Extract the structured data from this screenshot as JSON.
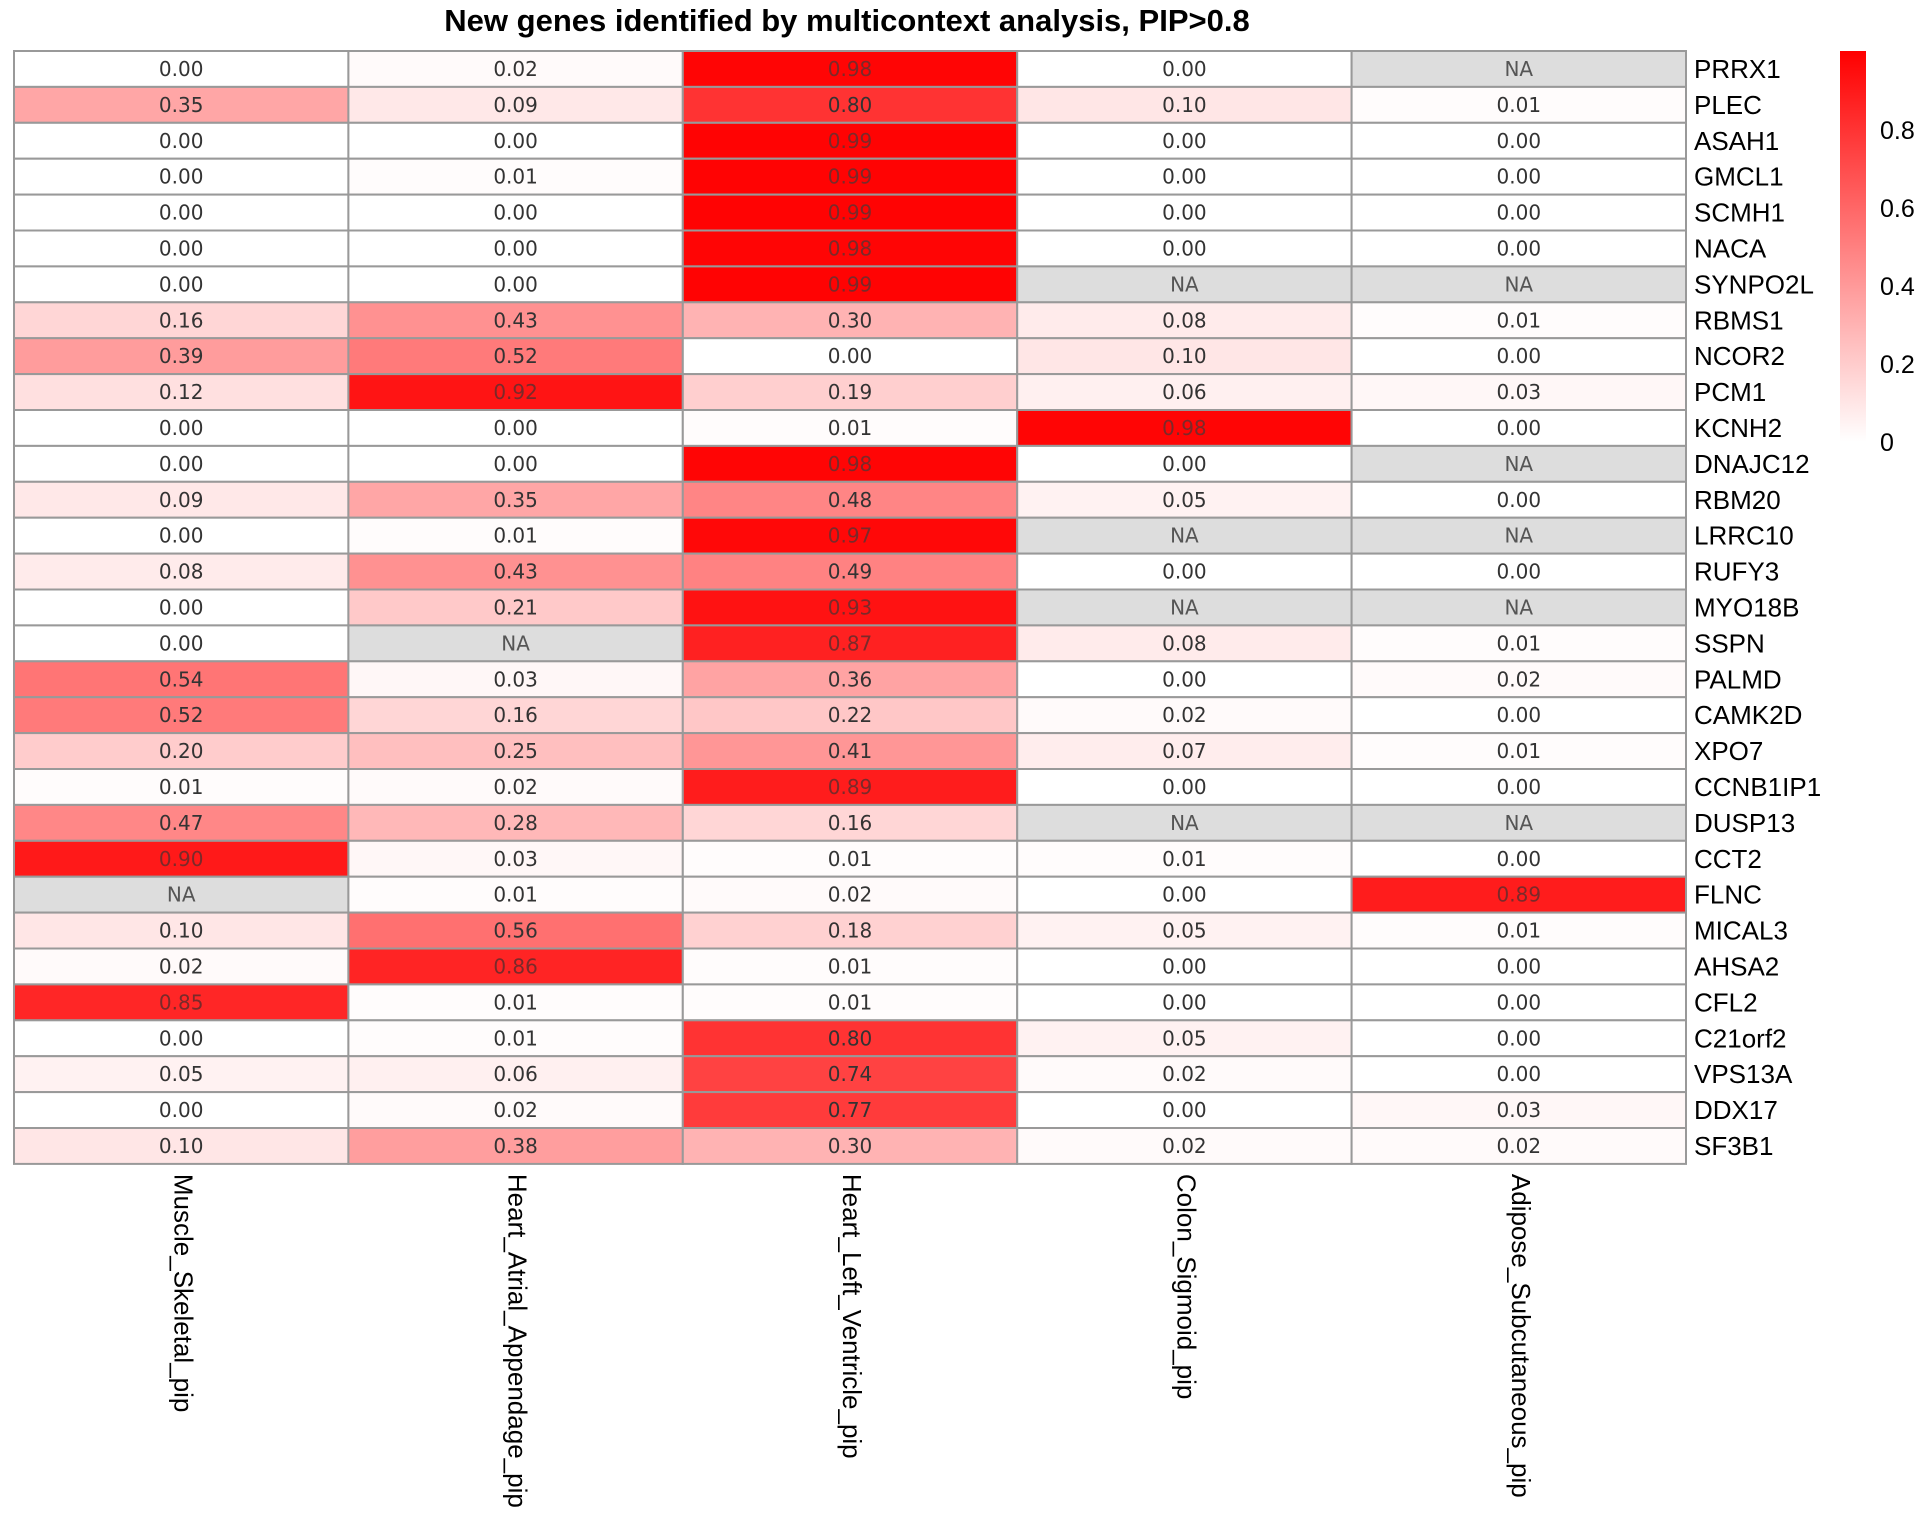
{
  "chart_data": {
    "type": "heatmap",
    "title": "New genes identified by multicontext analysis, PIP>0.8",
    "columns": [
      "Muscle_Skeletal_pip",
      "Heart_Atrial_Appendage_pip",
      "Heart_Left_Ventricle_pip",
      "Colon_Sigmoid_pip",
      "Adipose_Subcutaneous_pip"
    ],
    "rows": [
      "PRRX1",
      "PLEC",
      "ASAH1",
      "GMCL1",
      "SCMH1",
      "NACA",
      "SYNPO2L",
      "RBMS1",
      "NCOR2",
      "PCM1",
      "KCNH2",
      "DNAJC12",
      "RBM20",
      "LRRC10",
      "RUFY3",
      "MYO18B",
      "SSPN",
      "PALMD",
      "CAMK2D",
      "XPO7",
      "CCNB1IP1",
      "DUSP13",
      "CCT2",
      "FLNC",
      "MICAL3",
      "AHSA2",
      "CFL2",
      "C21orf2",
      "VPS13A",
      "DDX17",
      "SF3B1"
    ],
    "values": [
      [
        0.0,
        0.02,
        0.98,
        0.0,
        null
      ],
      [
        0.35,
        0.09,
        0.8,
        0.1,
        0.01
      ],
      [
        0.0,
        0.0,
        0.99,
        0.0,
        0.0
      ],
      [
        0.0,
        0.01,
        0.99,
        0.0,
        0.0
      ],
      [
        0.0,
        0.0,
        0.99,
        0.0,
        0.0
      ],
      [
        0.0,
        0.0,
        0.98,
        0.0,
        0.0
      ],
      [
        0.0,
        0.0,
        0.99,
        null,
        null
      ],
      [
        0.16,
        0.43,
        0.3,
        0.08,
        0.01
      ],
      [
        0.39,
        0.52,
        0.0,
        0.1,
        0.0
      ],
      [
        0.12,
        0.92,
        0.19,
        0.06,
        0.03
      ],
      [
        0.0,
        0.0,
        0.01,
        0.98,
        0.0
      ],
      [
        0.0,
        0.0,
        0.98,
        0.0,
        null
      ],
      [
        0.09,
        0.35,
        0.48,
        0.05,
        0.0
      ],
      [
        0.0,
        0.01,
        0.97,
        null,
        null
      ],
      [
        0.08,
        0.43,
        0.49,
        0.0,
        0.0
      ],
      [
        0.0,
        0.21,
        0.93,
        null,
        null
      ],
      [
        0.0,
        null,
        0.87,
        0.08,
        0.01
      ],
      [
        0.54,
        0.03,
        0.36,
        0.0,
        0.02
      ],
      [
        0.52,
        0.16,
        0.22,
        0.02,
        0.0
      ],
      [
        0.2,
        0.25,
        0.41,
        0.07,
        0.01
      ],
      [
        0.01,
        0.02,
        0.89,
        0.0,
        0.0
      ],
      [
        0.47,
        0.28,
        0.16,
        null,
        null
      ],
      [
        0.9,
        0.03,
        0.01,
        0.01,
        0.0
      ],
      [
        null,
        0.01,
        0.02,
        0.0,
        0.89
      ],
      [
        0.1,
        0.56,
        0.18,
        0.05,
        0.01
      ],
      [
        0.02,
        0.86,
        0.01,
        0.0,
        0.0
      ],
      [
        0.85,
        0.01,
        0.01,
        0.0,
        0.0
      ],
      [
        0.0,
        0.01,
        0.8,
        0.05,
        0.0
      ],
      [
        0.05,
        0.06,
        0.74,
        0.02,
        0.0
      ],
      [
        0.0,
        0.02,
        0.77,
        0.0,
        0.03
      ],
      [
        0.1,
        0.38,
        0.3,
        0.02,
        0.02
      ]
    ],
    "na_label": "NA",
    "color_scale": {
      "low": "#ffffff",
      "high": "#ff0000",
      "na": "#dddddd",
      "range": [
        0,
        1
      ]
    },
    "legend": {
      "ticks": [
        0,
        0.2,
        0.4,
        0.6,
        0.8
      ],
      "tick_labels": [
        "0",
        "0.2",
        "0.4",
        "0.6",
        "0.8"
      ],
      "placement": "top-right"
    }
  }
}
